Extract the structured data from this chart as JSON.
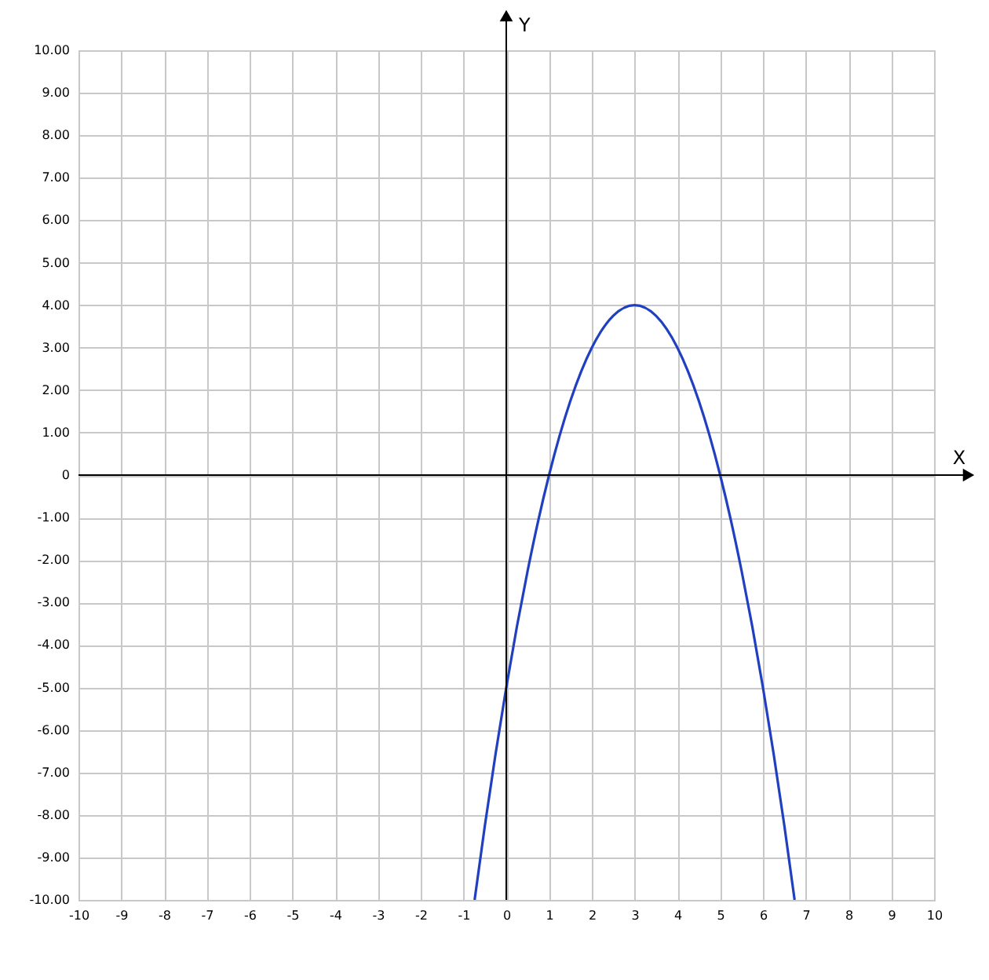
{
  "chart_data": {
    "type": "line",
    "xlabel": "X",
    "ylabel": "Y",
    "x": [
      -0.74,
      -0.5,
      -0.25,
      0,
      0.25,
      0.5,
      0.75,
      1,
      1.5,
      2,
      2.5,
      3,
      3.5,
      4,
      4.5,
      5,
      5.25,
      5.5,
      5.75,
      6,
      6.25,
      6.5,
      6.74
    ],
    "series": [
      {
        "color": "#2040c0",
        "values": [
          -10,
          -8.25,
          -6.56,
          -5,
          -3.56,
          -2.25,
          -1.06,
          0,
          1.75,
          3,
          3.75,
          4,
          3.75,
          3,
          1.75,
          0,
          -1.06,
          -2.25,
          -3.56,
          -5,
          -6.56,
          -8.25,
          -10
        ]
      }
    ],
    "xlim": [
      -10,
      10
    ],
    "ylim": [
      -10,
      10
    ],
    "xticks": [
      -10,
      -9,
      -8,
      -7,
      -6,
      -5,
      -4,
      -3,
      -2,
      -1,
      0,
      1,
      2,
      3,
      4,
      5,
      6,
      7,
      8,
      9,
      10
    ],
    "yticks": [
      {
        "value": -10,
        "label": "-10.00"
      },
      {
        "value": -9,
        "label": "-9.00"
      },
      {
        "value": -8,
        "label": "-8.00"
      },
      {
        "value": -7,
        "label": "-7.00"
      },
      {
        "value": -6,
        "label": "-6.00"
      },
      {
        "value": -5,
        "label": "-5.00"
      },
      {
        "value": -4,
        "label": "-4.00"
      },
      {
        "value": -3,
        "label": "-3.00"
      },
      {
        "value": -2,
        "label": "-2.00"
      },
      {
        "value": -1,
        "label": "-1.00"
      },
      0,
      {
        "value": 1,
        "label": "1.00"
      },
      {
        "value": 2,
        "label": "2.00"
      },
      {
        "value": 3,
        "label": "3.00"
      },
      {
        "value": 4,
        "label": "4.00"
      },
      {
        "value": 5,
        "label": "5.00"
      },
      {
        "value": 6,
        "label": "6.00"
      },
      {
        "value": 7,
        "label": "7.00"
      },
      {
        "value": 8,
        "label": "8.00"
      },
      {
        "value": 9,
        "label": "9.00"
      },
      {
        "value": 10,
        "label": "10.00"
      }
    ],
    "grid": true,
    "marker": "none",
    "line_style": "solid"
  }
}
